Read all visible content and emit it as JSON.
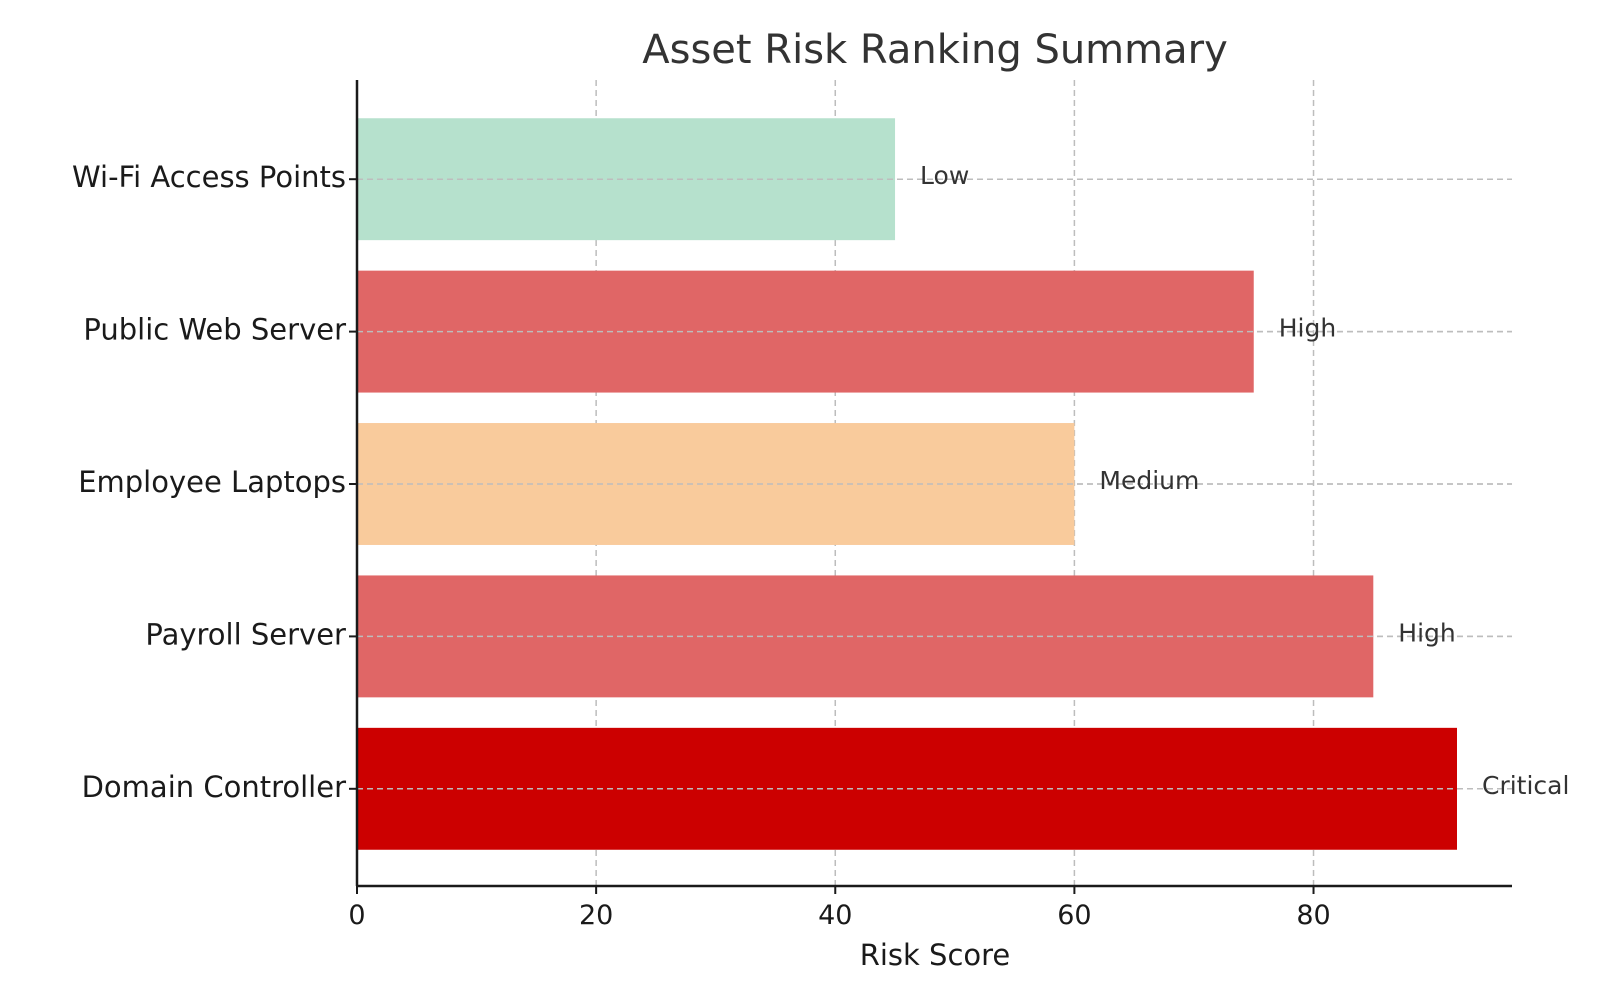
{
  "chart_data": {
    "type": "bar",
    "orientation": "horizontal",
    "title": "Asset Risk Ranking Summary",
    "xlabel": "Risk Score",
    "ylabel": "",
    "xlim": [
      0,
      96.6
    ],
    "xticks": [
      0,
      20,
      40,
      60,
      80
    ],
    "grid": true,
    "categories": [
      "Domain Controller",
      "Payroll Server",
      "Employee Laptops",
      "Public Web Server",
      "Wi-Fi Access Points"
    ],
    "values": [
      92,
      85,
      60,
      75,
      45
    ],
    "risk_levels": [
      "Critical",
      "High",
      "Medium",
      "High",
      "Low"
    ],
    "colors": [
      "#cc0000",
      "#e06666",
      "#f9cb9c",
      "#e06666",
      "#b6e1cd"
    ]
  }
}
